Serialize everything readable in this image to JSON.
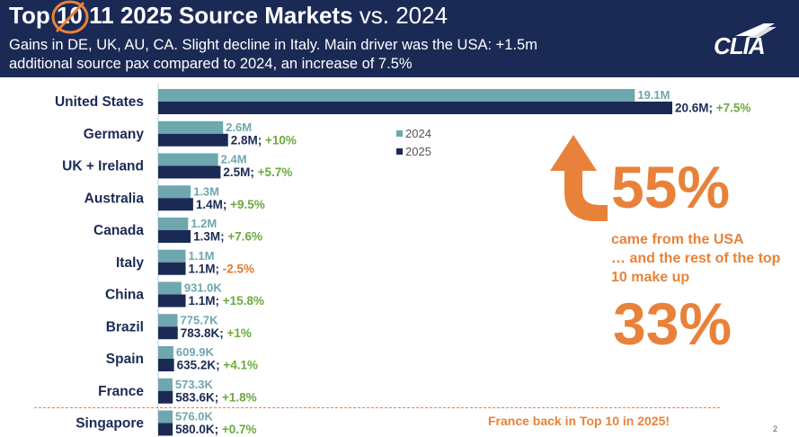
{
  "header": {
    "title_prefix": "Top ",
    "title_struck": "10",
    "title_main": "11 2025 Source Markets",
    "title_suffix": "vs. 2024",
    "subtitle": "Gains in DE, UK, AU, CA. Slight decline in Italy. Main driver was the USA: +1.5m additional source pax compared to 2024, an increase of 7.5%",
    "logo_text": "CLIA"
  },
  "colors": {
    "navy": "#1b2a55",
    "teal": "#6ea7ae",
    "orange": "#e8823a",
    "green": "#6aab3e"
  },
  "chart_data": {
    "type": "bar",
    "orientation": "horizontal",
    "categories": [
      "United States",
      "Germany",
      "UK + Ireland",
      "Australia",
      "Canada",
      "Italy",
      "China",
      "Brazil",
      "Spain",
      "France",
      "Singapore"
    ],
    "series": [
      {
        "name": "2024",
        "values": [
          19.1,
          2.6,
          2.4,
          1.3,
          1.2,
          1.1,
          0.931,
          0.7757,
          0.6099,
          0.5733,
          0.576
        ],
        "labels": [
          "19.1M",
          "2.6M",
          "2.4M",
          "1.3M",
          "1.2M",
          "1.1M",
          "931.0K",
          "775.7K",
          "609.9K",
          "573.3K",
          "576.0K"
        ]
      },
      {
        "name": "2025",
        "values": [
          20.6,
          2.8,
          2.5,
          1.4,
          1.3,
          1.1,
          1.1,
          0.7838,
          0.6352,
          0.5836,
          0.58
        ],
        "labels": [
          "20.6M",
          "2.8M",
          "2.5M",
          "1.4M",
          "1.3M",
          "1.1M",
          "1.1M",
          "783.8K",
          "635.2K",
          "583.6K",
          "580.0K"
        ]
      }
    ],
    "changes": [
      "+7.5%",
      "+10%",
      "+5.7%",
      "+9.5%",
      "+7.6%",
      "-2.5%",
      "+15.8%",
      "+1%",
      "+4.1%",
      "+1.8%",
      "+0.7%"
    ],
    "legend_position": "top-center"
  },
  "callouts": {
    "pct_usa": "55%",
    "usa_text_1": "came from the USA",
    "usa_text_2": "… and the rest of the top 10 make up",
    "pct_rest": "33%",
    "france_note": "France back in Top 10 in 2025!"
  },
  "page_number": "2"
}
